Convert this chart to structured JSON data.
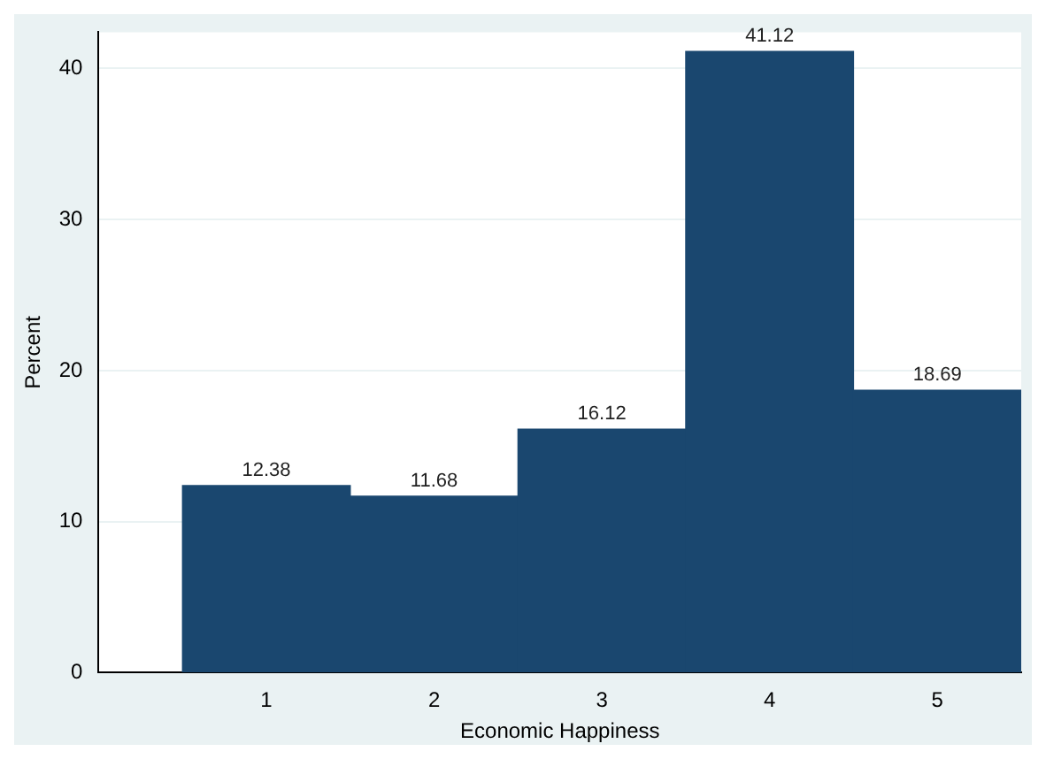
{
  "chart_data": {
    "type": "histogram",
    "xlabel": "Economic Happiness",
    "ylabel": "Percent",
    "bins": [
      0.5,
      1.5,
      2.5,
      3.5,
      4.5,
      5.5
    ],
    "values": [
      12.38,
      11.68,
      16.12,
      41.12,
      18.69
    ],
    "color": "#1a476f",
    "xlim": [
      0,
      5.5
    ],
    "xticks": [
      1,
      2,
      3,
      4,
      5
    ],
    "ylim": [
      0,
      42.4
    ],
    "yticks": [
      0,
      10,
      20,
      30,
      40
    ],
    "grid": "y",
    "data_labels": true
  }
}
